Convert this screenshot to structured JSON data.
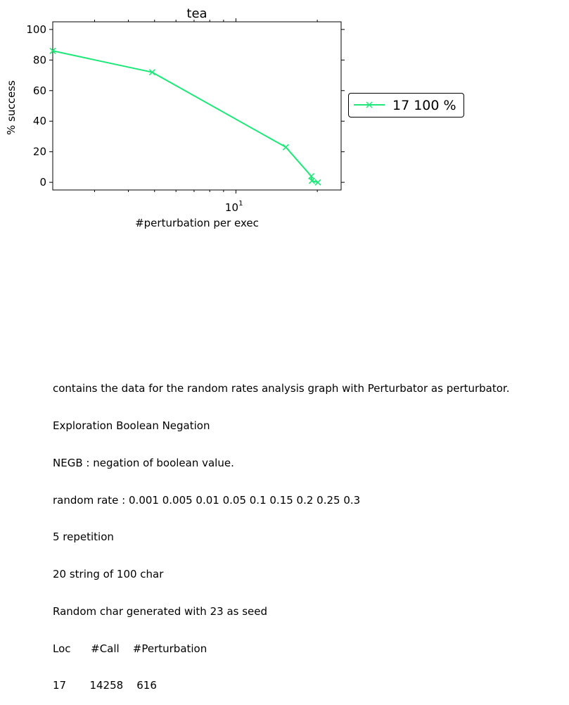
{
  "chart_data": {
    "type": "line",
    "title": "tea",
    "xlabel": "#perturbation per exec",
    "ylabel": "% success",
    "xscale": "log",
    "xlim": [
      2.1,
      24.5
    ],
    "ylim": [
      -5,
      105
    ],
    "yticks": [
      "0",
      "20",
      "40",
      "60",
      "80",
      "100"
    ],
    "xticks": [
      "10^1"
    ],
    "series": [
      {
        "name": "17 100 %",
        "color": "#1ee87a",
        "marker": "x",
        "x": [
          2.1,
          4.9,
          15.3,
          19.0,
          19.1,
          20.1
        ],
        "y": [
          86,
          72,
          23,
          4,
          1,
          0
        ]
      }
    ],
    "legend": "outside-right",
    "grid": false
  },
  "notes": [
    "contains the data for the random rates analysis graph with Perturbator as perturbator.",
    "Exploration Boolean Negation",
    "NEGB : negation of boolean value.",
    "random rate : 0.001 0.005 0.01 0.05 0.1 0.15 0.2 0.25 0.3",
    "5 repetition",
    "20 string of 100 char",
    "Random char generated with 23 as seed",
    "Loc      #Call    #Perturbation",
    "17       14258    616"
  ]
}
